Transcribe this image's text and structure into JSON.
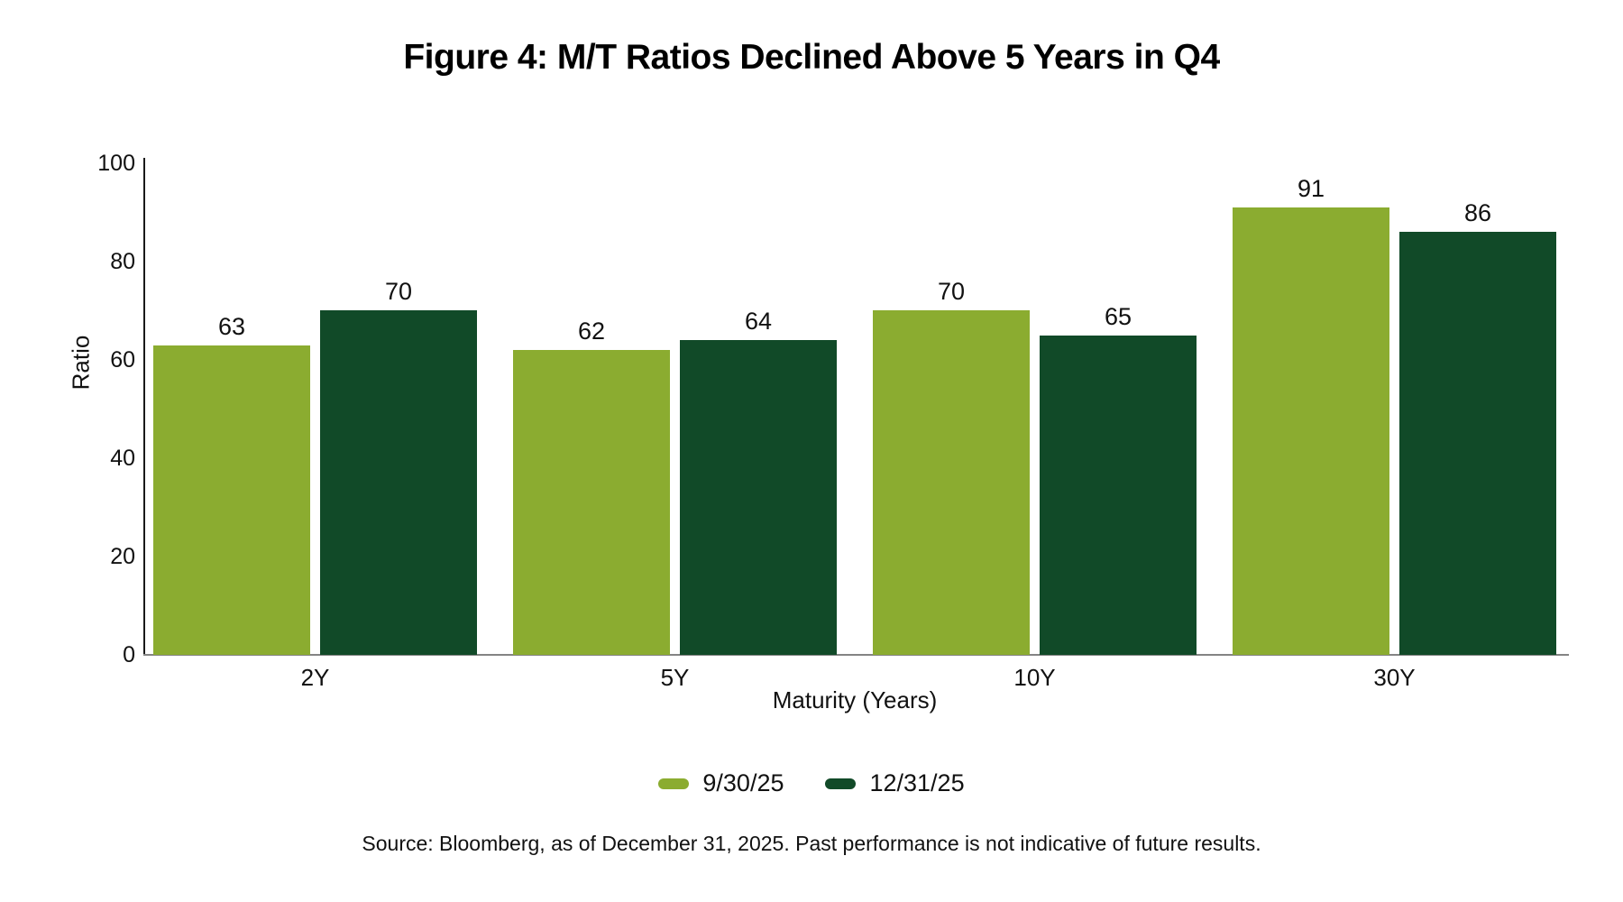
{
  "source_note": "Source: Bloomberg, as of December 31, 2025. Past performance is not indicative of future results.",
  "chart_data": {
    "type": "bar",
    "title": "Figure 4: M/T Ratios Declined Above 5 Years in Q4",
    "categories": [
      "2Y",
      "5Y",
      "10Y",
      "30Y"
    ],
    "series": [
      {
        "name": "9/30/25",
        "color": "#8BAC30",
        "values": [
          63,
          62,
          70,
          91
        ]
      },
      {
        "name": "12/31/25",
        "color": "#114A28",
        "values": [
          70,
          64,
          65,
          86
        ]
      }
    ],
    "xlabel": "Maturity (Years)",
    "ylabel": "Ratio",
    "ylim": [
      0,
      100
    ],
    "yticks": [
      0,
      20,
      40,
      60,
      80,
      100
    ],
    "grid": false,
    "legend_position": "bottom",
    "bar_value_labels": true
  }
}
